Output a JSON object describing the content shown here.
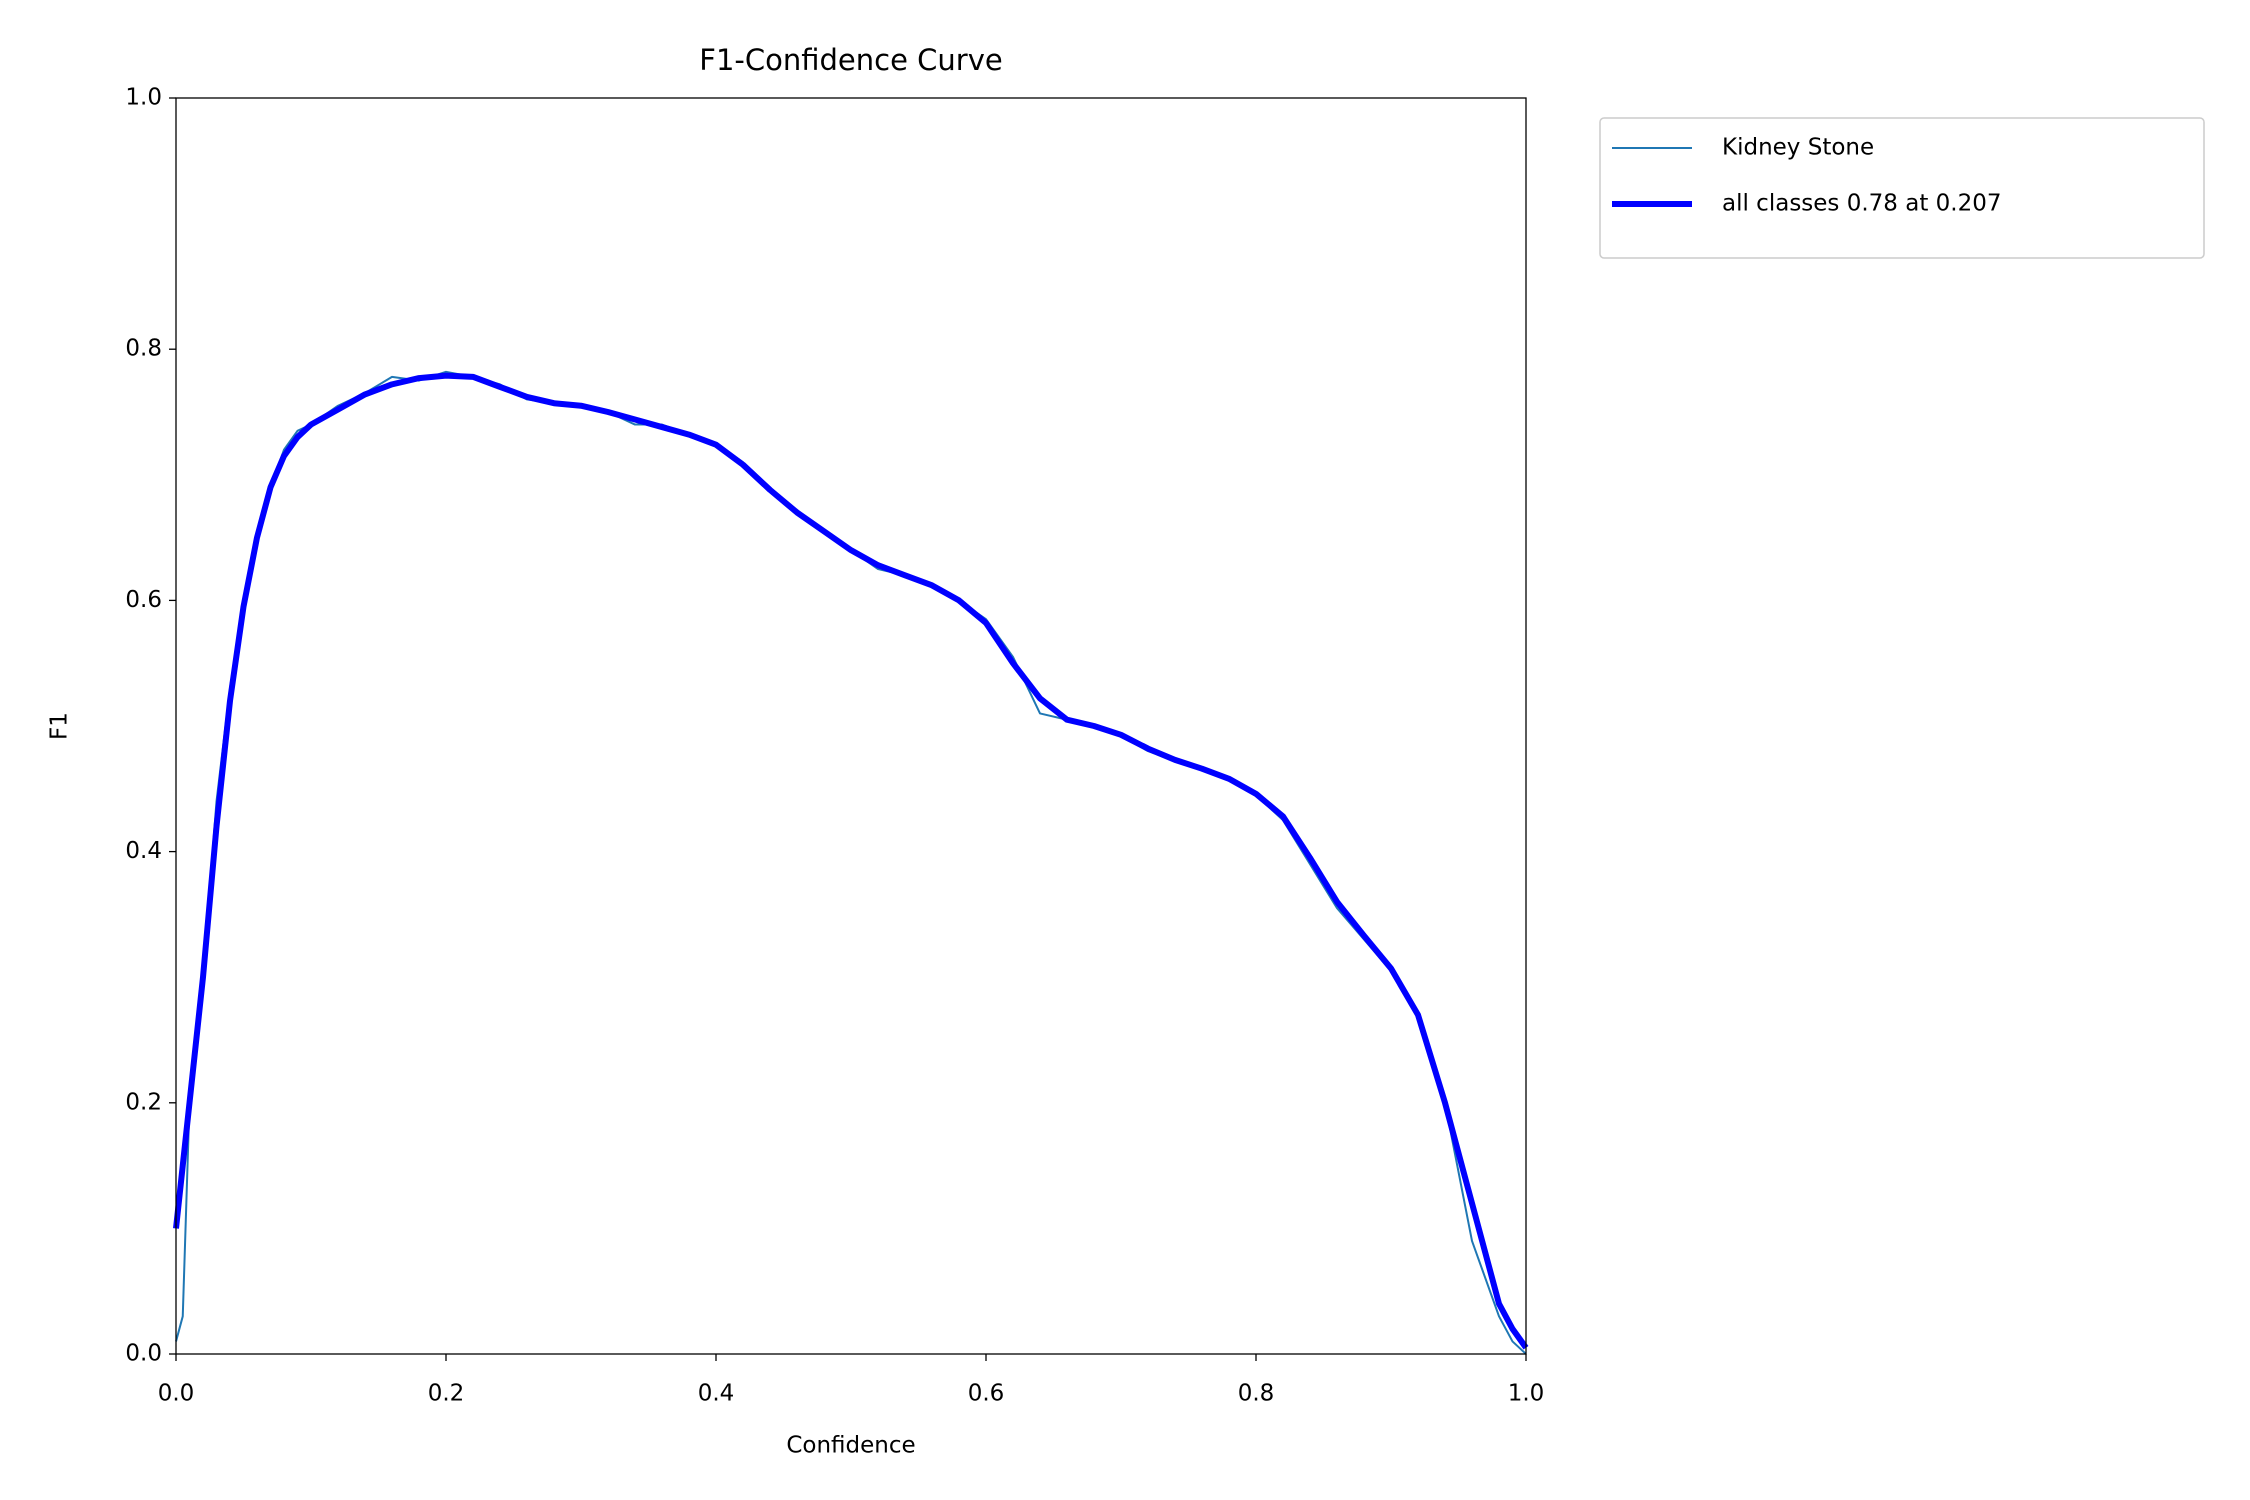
{
  "chart_data": {
    "type": "line",
    "title": "F1-Confidence Curve",
    "x_label": "Confidence",
    "y_label": "F1",
    "xlim": [
      0,
      1
    ],
    "ylim": [
      0,
      1
    ],
    "xticks": [
      {
        "value": 0,
        "label": "0.0"
      },
      0.2,
      0.4,
      0.6,
      0.8,
      {
        "value": 1,
        "label": "1.0"
      }
    ],
    "yticks": [
      {
        "value": 0,
        "label": "0.0"
      },
      0.2,
      0.4,
      0.6,
      0.8,
      {
        "value": 1,
        "label": "1.0"
      }
    ],
    "legend": "outside-upper-right",
    "x": [
      0,
      0.005,
      0.01,
      0.02,
      0.03,
      0.04,
      0.05,
      0.06,
      0.07,
      0.08,
      0.09,
      0.1,
      0.12,
      0.14,
      0.16,
      0.18,
      0.2,
      0.22,
      0.24,
      0.26,
      0.28,
      0.3,
      0.32,
      0.34,
      0.36,
      0.38,
      0.4,
      0.42,
      0.44,
      0.46,
      0.48,
      0.5,
      0.52,
      0.54,
      0.56,
      0.58,
      0.6,
      0.62,
      0.64,
      0.66,
      0.68,
      0.7,
      0.72,
      0.74,
      0.76,
      0.78,
      0.8,
      0.82,
      0.84,
      0.86,
      0.88,
      0.9,
      0.92,
      0.94,
      0.96,
      0.98,
      0.99,
      1.0
    ],
    "series": [
      {
        "name": "Kidney Stone",
        "color": "#1f77b4",
        "width": 2,
        "values": [
          0.01,
          0.03,
          0.2,
          0.3,
          0.44,
          0.53,
          0.6,
          0.65,
          0.69,
          0.72,
          0.735,
          0.74,
          0.755,
          0.765,
          0.778,
          0.775,
          0.782,
          0.778,
          0.772,
          0.76,
          0.757,
          0.755,
          0.75,
          0.74,
          0.74,
          0.732,
          0.725,
          0.71,
          0.69,
          0.67,
          0.655,
          0.64,
          0.625,
          0.62,
          0.612,
          0.6,
          0.585,
          0.555,
          0.51,
          0.505,
          0.5,
          0.492,
          0.48,
          0.472,
          0.465,
          0.458,
          0.445,
          0.425,
          0.39,
          0.355,
          0.33,
          0.305,
          0.27,
          0.2,
          0.09,
          0.03,
          0.01,
          0.0
        ]
      },
      {
        "name": "all classes 0.78 at 0.207",
        "color": "#0000ff",
        "width": 6,
        "values": [
          0.1,
          0.15,
          0.2,
          0.3,
          0.42,
          0.52,
          0.595,
          0.65,
          0.69,
          0.715,
          0.73,
          0.74,
          0.752,
          0.764,
          0.772,
          0.777,
          0.779,
          0.778,
          0.77,
          0.762,
          0.757,
          0.755,
          0.75,
          0.744,
          0.738,
          0.732,
          0.724,
          0.708,
          0.688,
          0.67,
          0.655,
          0.64,
          0.628,
          0.62,
          0.612,
          0.6,
          0.582,
          0.55,
          0.522,
          0.505,
          0.5,
          0.493,
          0.482,
          0.473,
          0.466,
          0.458,
          0.446,
          0.428,
          0.395,
          0.36,
          0.333,
          0.307,
          0.27,
          0.2,
          0.12,
          0.04,
          0.02,
          0.005
        ]
      }
    ]
  }
}
